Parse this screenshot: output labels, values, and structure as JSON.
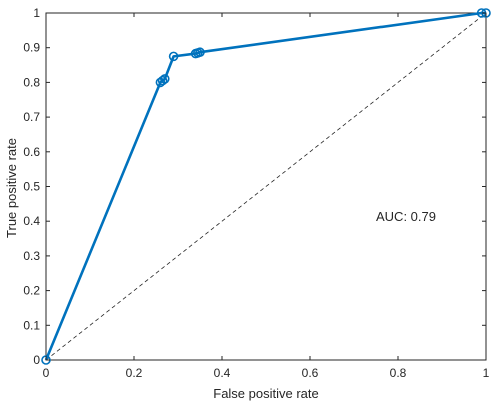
{
  "chart_data": {
    "type": "line",
    "title": "",
    "xlabel": "False positive rate",
    "ylabel": "True positive rate",
    "xlim": [
      0,
      1
    ],
    "ylim": [
      0,
      1
    ],
    "xticks": [
      0,
      0.2,
      0.4,
      0.6,
      0.8,
      1
    ],
    "yticks": [
      0,
      0.1,
      0.2,
      0.3,
      0.4,
      0.5,
      0.6,
      0.7,
      0.8,
      0.9,
      1
    ],
    "grid": false,
    "legend": "none",
    "series": [
      {
        "color": "#0072BD",
        "marker": "circle",
        "points": [
          {
            "x": 0,
            "y": 0
          },
          {
            "x": 0.26,
            "y": 0.8
          },
          {
            "x": 0.265,
            "y": 0.805
          },
          {
            "x": 0.27,
            "y": 0.81
          },
          {
            "x": 0.29,
            "y": 0.875
          },
          {
            "x": 0.34,
            "y": 0.883
          },
          {
            "x": 0.345,
            "y": 0.885
          },
          {
            "x": 0.35,
            "y": 0.887
          },
          {
            "x": 0.99,
            "y": 1
          },
          {
            "x": 1,
            "y": 1
          }
        ]
      }
    ],
    "reference_line": {
      "x": [
        0,
        1
      ],
      "y": [
        0,
        1
      ],
      "style": "dashed",
      "color": "#262626"
    },
    "annotations": [
      {
        "text": "AUC: 0.79",
        "x": 0.75,
        "y": 0.4
      }
    ]
  }
}
